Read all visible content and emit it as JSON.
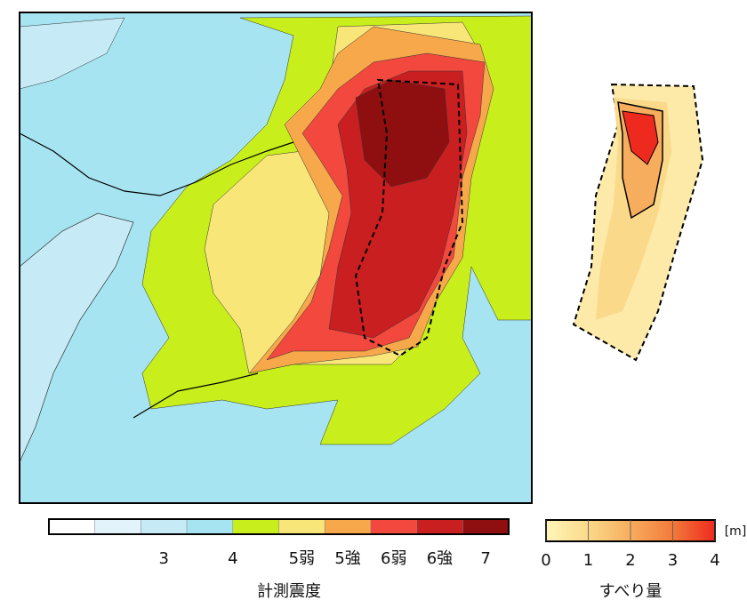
{
  "intensity_legend": {
    "title": "計測震度",
    "colors": [
      "#ffffff",
      "#e2f3fb",
      "#c6ebf7",
      "#a6e4f1",
      "#c8ef1c",
      "#f9e679",
      "#f7a84a",
      "#f2483e",
      "#c91f20",
      "#8f0f10"
    ],
    "labels": [
      "3",
      "4",
      "5弱",
      "5強",
      "6弱",
      "6強",
      "7"
    ]
  },
  "slip_legend": {
    "title": "すべり量",
    "unit": "[m]",
    "lim": [
      0,
      4
    ],
    "ticks": [
      0,
      1,
      2,
      3,
      4
    ],
    "colors": [
      "#fff6b8",
      "#fbd98a",
      "#f7ad5e",
      "#f27a3b",
      "#ee2a1e"
    ]
  }
}
